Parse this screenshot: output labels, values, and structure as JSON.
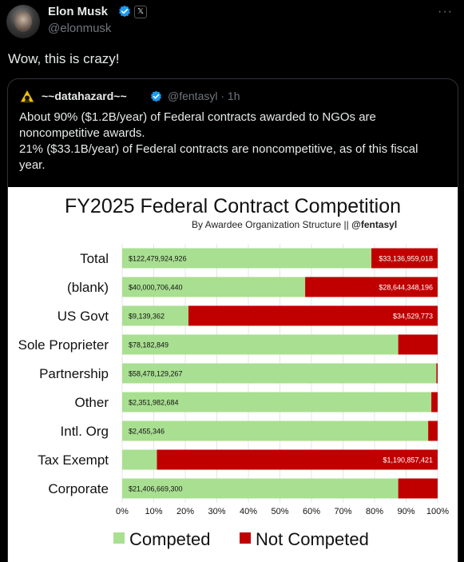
{
  "post": {
    "display_name": "Elon Musk",
    "handle": "@elonmusk",
    "text": "Wow, this is crazy!",
    "x_badge": "𝕏",
    "more": "···"
  },
  "quoted": {
    "display_name": "~~datahazard~~",
    "handle_time": "@fentasyl · 1h",
    "lines": [
      "About 90% ($1.2B/year) of Federal contracts awarded to NGOs are noncompetitive awards.",
      "21% ($33.1B/year) of Federal contracts are noncompetitive, as of this fiscal year."
    ]
  },
  "chart_data": {
    "type": "bar",
    "orientation": "horizontal-stacked-percent",
    "title": "FY2025 Federal Contract Competition",
    "subtitle_prefix": "By Awardee Organization Structure || ",
    "subtitle_handle": "@fentasyl",
    "categories": [
      "Total",
      "(blank)",
      "US Govt",
      "Sole Proprieter",
      "Partnership",
      "Other",
      "Intl. Org",
      "Tax Exempt",
      "Corporate"
    ],
    "series": [
      {
        "name": "Competed",
        "color": "#a9df91",
        "percent": [
          79,
          58,
          21,
          87.5,
          99.6,
          98,
          97,
          11,
          87.5
        ],
        "labels": [
          "$122,479,924,926",
          "$40,000,706,440",
          "$9,139,362",
          "$78,182,849",
          "$58,478,129,267",
          "$2,351,982,684",
          "$2,455,346",
          "",
          "$21,406,669,300"
        ]
      },
      {
        "name": "Not Competed",
        "color": "#c00000",
        "percent": [
          21,
          42,
          79,
          12.5,
          0.4,
          2,
          3,
          89,
          12.5
        ],
        "labels": [
          "$33,136,959,018",
          "$28,644,348,196",
          "$34,529,773",
          "",
          "",
          "",
          "",
          "$1,190,857,421",
          ""
        ]
      }
    ],
    "xticks": [
      "0%",
      "10%",
      "20%",
      "30%",
      "40%",
      "50%",
      "60%",
      "70%",
      "80%",
      "90%",
      "100%"
    ],
    "xlim": [
      0,
      100
    ],
    "legend_position": "bottom"
  },
  "colors": {
    "background": "#000000",
    "text": "#e7e9ea",
    "muted": "#71767b",
    "verified": "#1d9bf0"
  }
}
